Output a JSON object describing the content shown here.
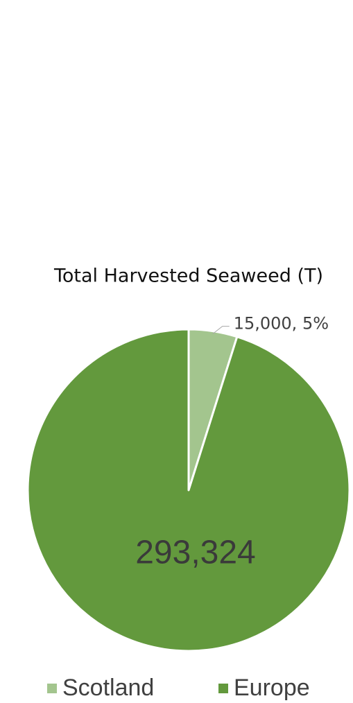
{
  "chart_data": {
    "type": "pie",
    "title": "Total Harvested Seaweed (T)",
    "categories": [
      "Scotland",
      "Europe"
    ],
    "values": [
      15000,
      293324
    ],
    "value_labels": [
      "15,000, 5%",
      "293,324"
    ],
    "colors": [
      "#a3c58e",
      "#63993d"
    ],
    "legend": "bottom"
  }
}
